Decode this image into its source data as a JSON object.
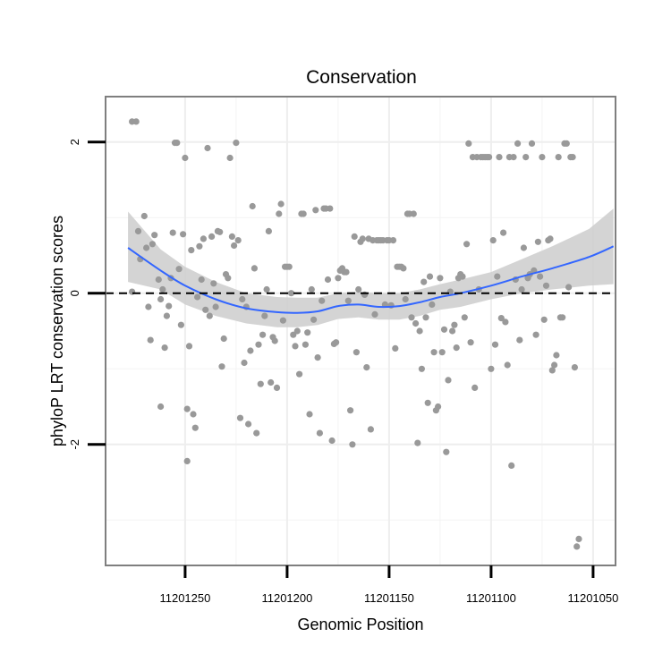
{
  "chart_data": {
    "type": "scatter",
    "title": "Conservation",
    "xlabel": "Genomic Position",
    "ylabel": "phyloP LRT conservation scores",
    "x_reversed": true,
    "xlim": [
      11201039,
      11201289
    ],
    "ylim": [
      -3.6,
      2.6
    ],
    "x_ticks": [
      11201250,
      11201200,
      11201150,
      11201100,
      11201050
    ],
    "x_tick_labels": [
      "11201250",
      "11201200",
      "11201150",
      "11201100",
      "11201050"
    ],
    "y_ticks": [
      2,
      0,
      -2
    ],
    "y_tick_labels": [
      "2",
      "0",
      "-2"
    ],
    "grid": true,
    "reference_line": {
      "y": 0,
      "style": "dashed",
      "color": "#000000"
    },
    "point_color": "#999999",
    "smooth_color": "#3366FF",
    "ribbon_color": "#cccccc",
    "points": [
      [
        11201276,
        2.27
      ],
      [
        11201274,
        2.27
      ],
      [
        11201276,
        0.02
      ],
      [
        11201273,
        0.82
      ],
      [
        11201272,
        0.45
      ],
      [
        11201270,
        1.02
      ],
      [
        11201269,
        0.6
      ],
      [
        11201268,
        -0.18
      ],
      [
        11201267,
        -0.62
      ],
      [
        11201266,
        0.65
      ],
      [
        11201265,
        0.77
      ],
      [
        11201263,
        0.18
      ],
      [
        11201262,
        -0.08
      ],
      [
        11201262,
        -1.5
      ],
      [
        11201261,
        0.05
      ],
      [
        11201260,
        -0.72
      ],
      [
        11201259,
        -0.3
      ],
      [
        11201258,
        -0.17
      ],
      [
        11201257,
        0.2
      ],
      [
        11201256,
        0.8
      ],
      [
        11201255,
        1.99
      ],
      [
        11201254,
        1.99
      ],
      [
        11201253,
        0.32
      ],
      [
        11201252,
        -0.42
      ],
      [
        11201251,
        0.78
      ],
      [
        11201250,
        1.79
      ],
      [
        11201249,
        -1.53
      ],
      [
        11201249,
        -2.22
      ],
      [
        11201248,
        -0.7
      ],
      [
        11201247,
        0.57
      ],
      [
        11201246,
        -1.6
      ],
      [
        11201245,
        -1.78
      ],
      [
        11201244,
        -0.05
      ],
      [
        11201243,
        0.62
      ],
      [
        11201242,
        0.18
      ],
      [
        11201241,
        0.72
      ],
      [
        11201240,
        -0.22
      ],
      [
        11201239,
        1.92
      ],
      [
        11201238,
        -0.3
      ],
      [
        11201237,
        0.75
      ],
      [
        11201236,
        0.13
      ],
      [
        11201235,
        -0.18
      ],
      [
        11201234,
        0.82
      ],
      [
        11201233,
        0.81
      ],
      [
        11201232,
        -0.97
      ],
      [
        11201231,
        -0.6
      ],
      [
        11201230,
        0.25
      ],
      [
        11201229,
        0.2
      ],
      [
        11201228,
        1.79
      ],
      [
        11201227,
        0.75
      ],
      [
        11201226,
        0.63
      ],
      [
        11201225,
        1.99
      ],
      [
        11201224,
        0.7
      ],
      [
        11201223,
        -1.65
      ],
      [
        11201222,
        -0.08
      ],
      [
        11201221,
        -0.92
      ],
      [
        11201220,
        -0.18
      ],
      [
        11201219,
        -1.73
      ],
      [
        11201218,
        -0.76
      ],
      [
        11201217,
        1.15
      ],
      [
        11201216,
        0.33
      ],
      [
        11201215,
        -1.85
      ],
      [
        11201214,
        -0.68
      ],
      [
        11201213,
        -1.2
      ],
      [
        11201212,
        -0.55
      ],
      [
        11201211,
        -0.3
      ],
      [
        11201210,
        0.05
      ],
      [
        11201209,
        0.82
      ],
      [
        11201208,
        -1.18
      ],
      [
        11201207,
        -0.58
      ],
      [
        11201206,
        -0.63
      ],
      [
        11201205,
        -1.25
      ],
      [
        11201204,
        1.05
      ],
      [
        11201203,
        1.18
      ],
      [
        11201202,
        -0.36
      ],
      [
        11201201,
        0.35
      ],
      [
        11201200,
        0.35
      ],
      [
        11201199,
        0.35
      ],
      [
        11201198,
        0.0
      ],
      [
        11201197,
        -0.55
      ],
      [
        11201196,
        -0.7
      ],
      [
        11201195,
        -0.5
      ],
      [
        11201194,
        -1.07
      ],
      [
        11201193,
        1.05
      ],
      [
        11201192,
        1.05
      ],
      [
        11201191,
        -0.68
      ],
      [
        11201190,
        -0.52
      ],
      [
        11201189,
        -1.6
      ],
      [
        11201188,
        0.05
      ],
      [
        11201187,
        -0.35
      ],
      [
        11201186,
        1.1
      ],
      [
        11201185,
        -0.85
      ],
      [
        11201184,
        -1.85
      ],
      [
        11201183,
        -0.1
      ],
      [
        11201182,
        1.12
      ],
      [
        11201181,
        1.12
      ],
      [
        11201180,
        0.18
      ],
      [
        11201179,
        1.12
      ],
      [
        11201178,
        -1.95
      ],
      [
        11201177,
        -0.67
      ],
      [
        11201176,
        -0.65
      ],
      [
        11201175,
        0.2
      ],
      [
        11201174,
        0.3
      ],
      [
        11201173,
        0.33
      ],
      [
        11201172,
        0.28
      ],
      [
        11201171,
        0.28
      ],
      [
        11201170,
        -0.1
      ],
      [
        11201169,
        -1.55
      ],
      [
        11201168,
        -2.0
      ],
      [
        11201167,
        0.75
      ],
      [
        11201166,
        -0.78
      ],
      [
        11201165,
        0.05
      ],
      [
        11201164,
        0.68
      ],
      [
        11201163,
        0.72
      ],
      [
        11201162,
        -0.02
      ],
      [
        11201161,
        -0.98
      ],
      [
        11201160,
        0.72
      ],
      [
        11201159,
        -1.8
      ],
      [
        11201158,
        0.7
      ],
      [
        11201157,
        -0.28
      ],
      [
        11201156,
        0.7
      ],
      [
        11201155,
        0.7
      ],
      [
        11201154,
        0.7
      ],
      [
        11201153,
        0.7
      ],
      [
        11201152,
        -0.15
      ],
      [
        11201151,
        0.7
      ],
      [
        11201150,
        0.7
      ],
      [
        11201149,
        -0.16
      ],
      [
        11201148,
        0.7
      ],
      [
        11201147,
        -0.73
      ],
      [
        11201146,
        0.35
      ],
      [
        11201145,
        0.35
      ],
      [
        11201144,
        0.35
      ],
      [
        11201143,
        0.33
      ],
      [
        11201142,
        -0.08
      ],
      [
        11201141,
        1.05
      ],
      [
        11201140,
        1.05
      ],
      [
        11201139,
        -0.32
      ],
      [
        11201138,
        1.05
      ],
      [
        11201137,
        -0.4
      ],
      [
        11201136,
        -1.98
      ],
      [
        11201135,
        -0.5
      ],
      [
        11201134,
        -1.0
      ],
      [
        11201133,
        0.15
      ],
      [
        11201132,
        -0.32
      ],
      [
        11201131,
        -1.45
      ],
      [
        11201130,
        0.22
      ],
      [
        11201129,
        -0.15
      ],
      [
        11201128,
        -0.78
      ],
      [
        11201127,
        -1.55
      ],
      [
        11201126,
        -1.5
      ],
      [
        11201125,
        0.2
      ],
      [
        11201124,
        -0.78
      ],
      [
        11201123,
        -0.48
      ],
      [
        11201122,
        -2.1
      ],
      [
        11201121,
        -1.15
      ],
      [
        11201120,
        0.02
      ],
      [
        11201119,
        -0.5
      ],
      [
        11201118,
        -0.42
      ],
      [
        11201117,
        -0.72
      ],
      [
        11201116,
        0.2
      ],
      [
        11201115,
        0.25
      ],
      [
        11201114,
        0.22
      ],
      [
        11201113,
        -0.32
      ],
      [
        11201112,
        0.65
      ],
      [
        11201111,
        1.98
      ],
      [
        11201110,
        -0.65
      ],
      [
        11201109,
        1.8
      ],
      [
        11201108,
        -1.25
      ],
      [
        11201107,
        1.8
      ],
      [
        11201106,
        0.05
      ],
      [
        11201105,
        1.8
      ],
      [
        11201104,
        1.8
      ],
      [
        11201103,
        1.8
      ],
      [
        11201102,
        1.8
      ],
      [
        11201101,
        1.8
      ],
      [
        11201100,
        -1.0
      ],
      [
        11201099,
        0.7
      ],
      [
        11201098,
        -0.68
      ],
      [
        11201097,
        0.22
      ],
      [
        11201096,
        1.8
      ],
      [
        11201095,
        -0.33
      ],
      [
        11201094,
        0.8
      ],
      [
        11201093,
        -0.38
      ],
      [
        11201092,
        -0.95
      ],
      [
        11201091,
        1.8
      ],
      [
        11201090,
        -2.28
      ],
      [
        11201089,
        1.8
      ],
      [
        11201088,
        0.18
      ],
      [
        11201087,
        1.98
      ],
      [
        11201086,
        -0.62
      ],
      [
        11201085,
        0.05
      ],
      [
        11201084,
        0.6
      ],
      [
        11201083,
        1.8
      ],
      [
        11201082,
        0.2
      ],
      [
        11201081,
        0.25
      ],
      [
        11201080,
        1.98
      ],
      [
        11201079,
        0.3
      ],
      [
        11201078,
        -0.55
      ],
      [
        11201077,
        0.68
      ],
      [
        11201076,
        0.22
      ],
      [
        11201075,
        1.8
      ],
      [
        11201074,
        -0.35
      ],
      [
        11201073,
        0.1
      ],
      [
        11201072,
        0.7
      ],
      [
        11201071,
        0.72
      ],
      [
        11201070,
        -1.02
      ],
      [
        11201069,
        -0.95
      ],
      [
        11201068,
        -0.82
      ],
      [
        11201067,
        1.8
      ],
      [
        11201066,
        -0.32
      ],
      [
        11201065,
        -0.32
      ],
      [
        11201064,
        1.98
      ],
      [
        11201063,
        1.98
      ],
      [
        11201062,
        0.08
      ],
      [
        11201061,
        1.8
      ],
      [
        11201060,
        1.8
      ],
      [
        11201059,
        -0.98
      ],
      [
        11201058,
        -3.35
      ],
      [
        11201057,
        -3.25
      ]
    ],
    "smooth_fit": {
      "x": [
        11201278,
        11201262,
        11201250,
        11201235,
        11201220,
        11201205,
        11201195,
        11201185,
        11201175,
        11201165,
        11201155,
        11201145,
        11201135,
        11201125,
        11201115,
        11201100,
        11201085,
        11201070,
        11201052,
        11201040
      ],
      "y": [
        0.6,
        0.3,
        0.1,
        -0.08,
        -0.2,
        -0.25,
        -0.26,
        -0.24,
        -0.17,
        -0.15,
        -0.18,
        -0.17,
        -0.12,
        -0.05,
        0.0,
        0.1,
        0.22,
        0.33,
        0.48,
        0.62
      ],
      "lower": [
        0.15,
        0.05,
        -0.15,
        -0.3,
        -0.4,
        -0.45,
        -0.45,
        -0.42,
        -0.34,
        -0.32,
        -0.35,
        -0.35,
        -0.3,
        -0.22,
        -0.18,
        -0.08,
        0.0,
        0.05,
        0.1,
        0.12
      ],
      "upper": [
        1.08,
        0.58,
        0.35,
        0.15,
        0.0,
        -0.05,
        -0.06,
        -0.06,
        0.0,
        0.02,
        0.0,
        0.0,
        0.05,
        0.12,
        0.18,
        0.28,
        0.45,
        0.62,
        0.85,
        1.12
      ]
    }
  }
}
